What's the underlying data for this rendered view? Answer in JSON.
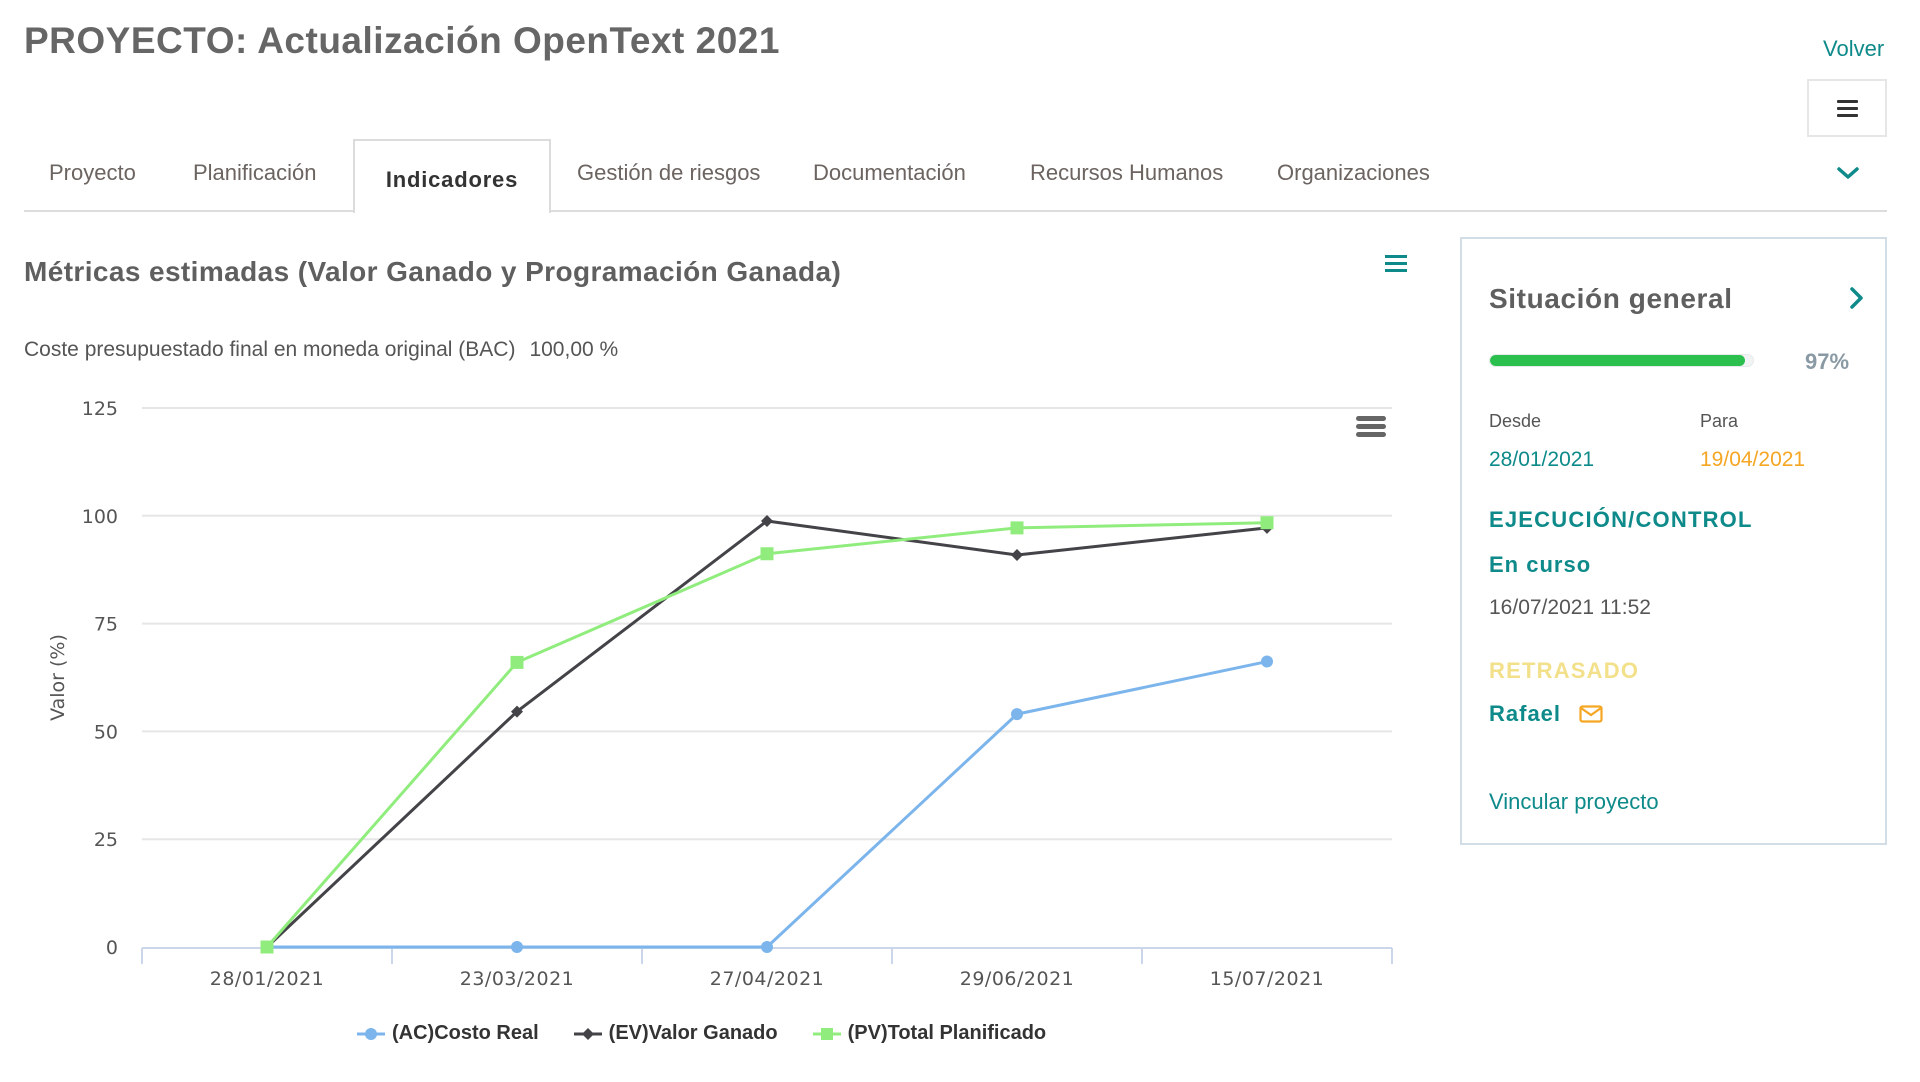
{
  "header": {
    "title": "PROYECTO: Actualización OpenText 2021",
    "back_link": "Volver",
    "menu_icon": "hamburger-icon"
  },
  "tabs": [
    {
      "label": "Proyecto",
      "active": false
    },
    {
      "label": "Planificación",
      "active": false
    },
    {
      "label": "Indicadores",
      "active": true
    },
    {
      "label": "Gestión de riesgos",
      "active": false
    },
    {
      "label": "Documentación",
      "active": false
    },
    {
      "label": "Recursos Humanos",
      "active": false
    },
    {
      "label": "Organizaciones",
      "active": false
    }
  ],
  "tabs_more_icon": "chevron-down-icon",
  "section": {
    "title": "Métricas estimadas (Valor Ganado y Programación Ganada)",
    "menu_icon": "hamburger-icon",
    "bac_label": "Coste presupuestado final en moneda original (BAC)",
    "bac_value": "100,00 %"
  },
  "colors": {
    "accent": "#0e8a8a",
    "ac": "#7cb5ec",
    "ev": "#434348",
    "pv": "#90ed7d",
    "progress": "#2bbf4e",
    "date_to": "#f5a623",
    "delay": "#f3e08a"
  },
  "chart_data": {
    "type": "line",
    "title": "",
    "xlabel": "",
    "ylabel": "Valor (%)",
    "ylim": [
      0,
      125
    ],
    "yticks": [
      0,
      25,
      50,
      75,
      100,
      125
    ],
    "grid": true,
    "legend_position": "bottom",
    "categories": [
      "28/01/2021",
      "23/03/2021",
      "27/04/2021",
      "29/06/2021",
      "15/07/2021"
    ],
    "series": [
      {
        "name": "(AC)Costo Real",
        "marker": "circle",
        "color": "#7cb5ec",
        "values": [
          0,
          0,
          0,
          54,
          66.2
        ]
      },
      {
        "name": "(EV)Valor Ganado",
        "marker": "diamond",
        "color": "#434348",
        "values": [
          0,
          54.6,
          98.8,
          90.9,
          97.2
        ]
      },
      {
        "name": "(PV)Total Planificado",
        "marker": "square",
        "color": "#90ed7d",
        "values": [
          0,
          66,
          91.2,
          97.2,
          98.4
        ]
      }
    ]
  },
  "panel": {
    "title": "Situación general",
    "progress_pct": 97,
    "progress_label": "97%",
    "from_label": "Desde",
    "from_date": "28/01/2021",
    "to_label": "Para",
    "to_date": "19/04/2021",
    "phase": "EJECUCIÓN/CONTROL",
    "state": "En curso",
    "timestamp": "16/07/2021 11:52",
    "delay_status": "RETRASADO",
    "owner": "Rafael",
    "link_label": "Vincular proyecto"
  }
}
